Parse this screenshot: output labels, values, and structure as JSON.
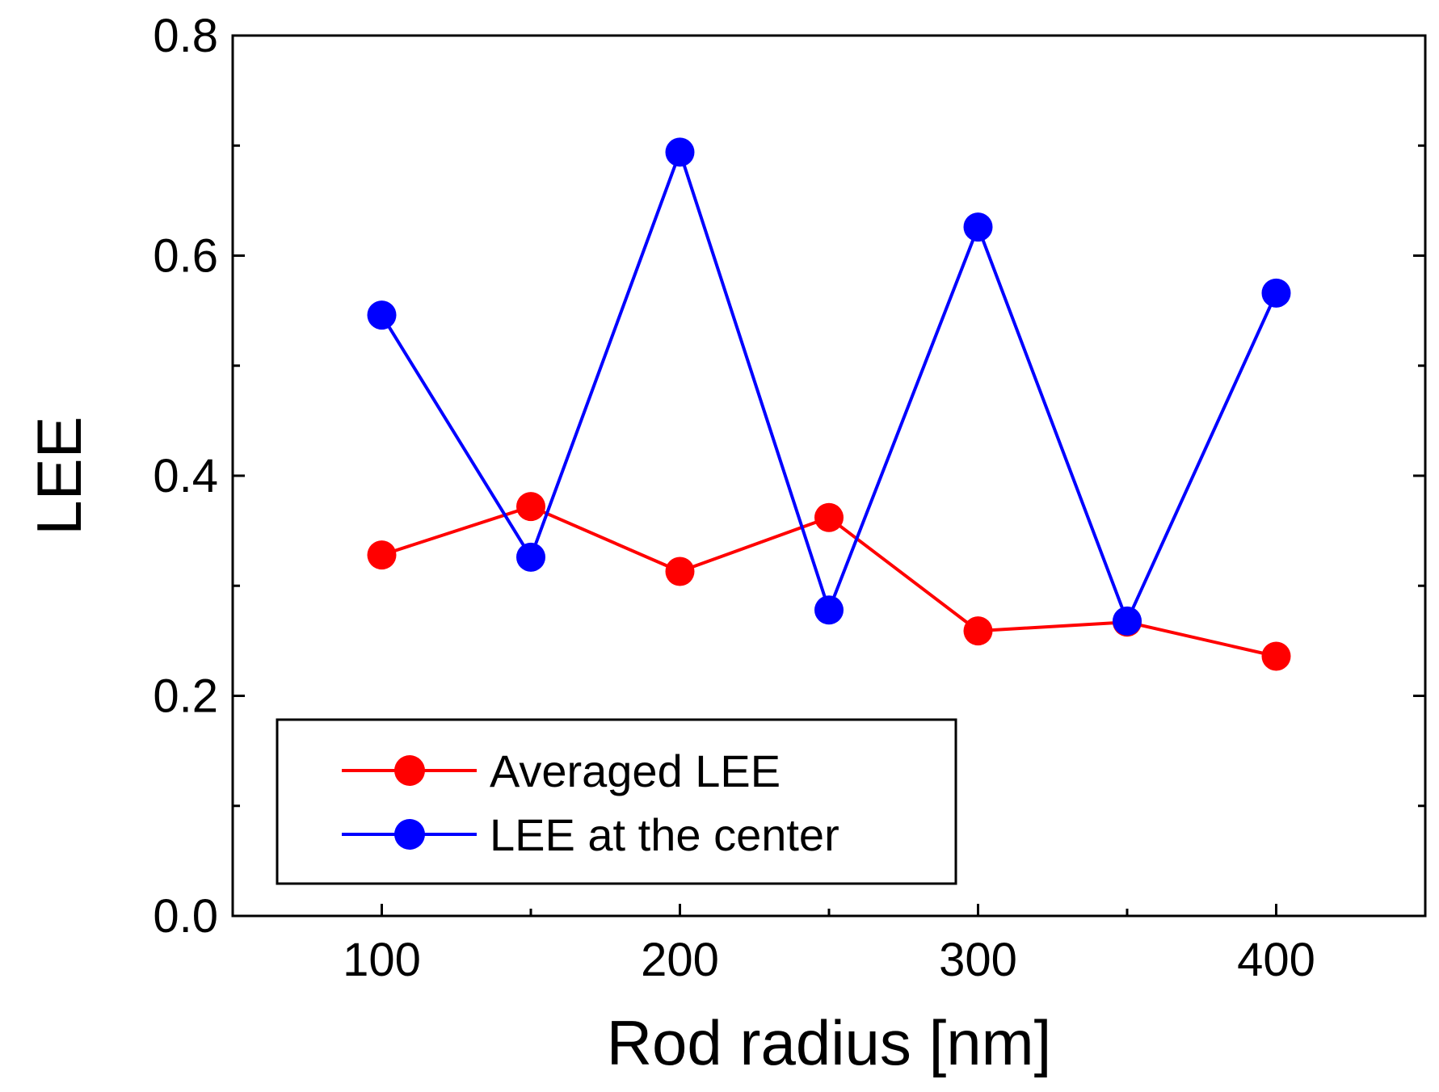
{
  "chart_data": {
    "type": "line",
    "title": "",
    "xlabel": "Rod radius [nm]",
    "ylabel": "LEE",
    "xlim": [
      50,
      450
    ],
    "ylim": [
      0.0,
      0.8
    ],
    "x_major_ticks": [
      100,
      200,
      300,
      400
    ],
    "x_tick_labels": [
      "100",
      "200",
      "300",
      "400"
    ],
    "x_minor_ticks": [
      150,
      250,
      350
    ],
    "y_major_ticks": [
      0.0,
      0.2,
      0.4,
      0.6,
      0.8
    ],
    "y_tick_labels": [
      "0.0",
      "0.2",
      "0.4",
      "0.6",
      "0.8"
    ],
    "y_minor_ticks": [
      0.1,
      0.3,
      0.5,
      0.7
    ],
    "grid": false,
    "legend_position": "bottom-left",
    "x": [
      100,
      150,
      200,
      250,
      300,
      350,
      400
    ],
    "series": [
      {
        "name": "Averaged LEE",
        "color": "#ff0000",
        "values": [
          0.328,
          0.372,
          0.313,
          0.362,
          0.259,
          0.267,
          0.236
        ]
      },
      {
        "name": "LEE at the center",
        "color": "#0000ff",
        "values": [
          0.546,
          0.326,
          0.694,
          0.278,
          0.626,
          0.268,
          0.566
        ]
      }
    ]
  }
}
